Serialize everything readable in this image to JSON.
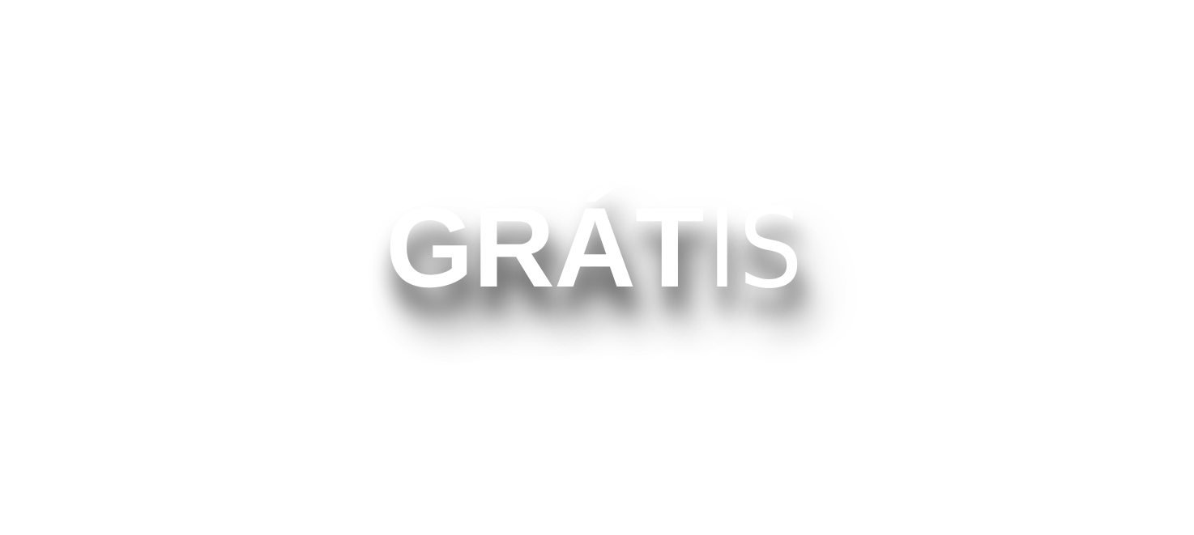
{
  "wordmark": {
    "bold_part": "GRÁT",
    "light_part": "IS",
    "text_color": "#ffffff",
    "background_color": "#ffffff",
    "shadow_color": "#000000"
  }
}
